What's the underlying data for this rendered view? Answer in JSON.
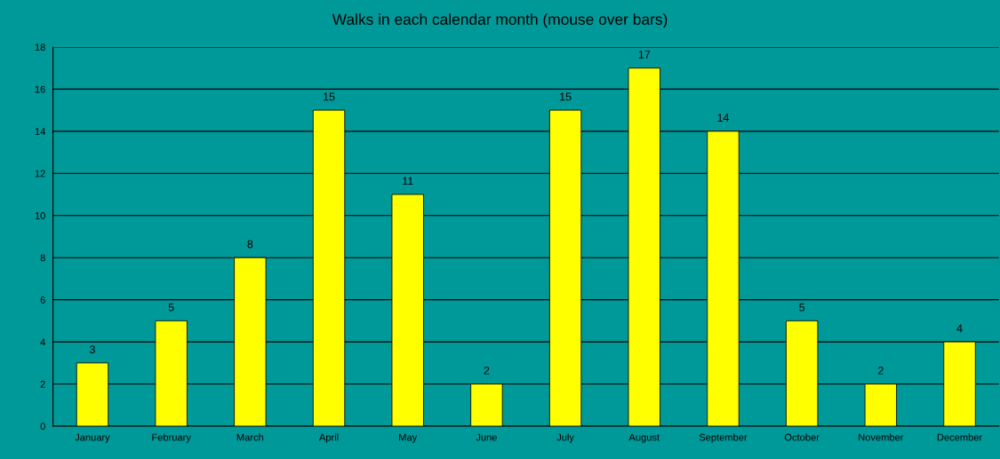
{
  "chart_data": {
    "type": "bar",
    "title": "Walks in each calendar month (mouse over bars)",
    "categories": [
      "January",
      "February",
      "March",
      "April",
      "May",
      "June",
      "July",
      "August",
      "September",
      "October",
      "November",
      "December"
    ],
    "values": [
      3,
      5,
      8,
      15,
      11,
      2,
      15,
      17,
      14,
      5,
      2,
      4
    ],
    "color": "#ffff00",
    "ylim": [
      0,
      18
    ],
    "yticks": [
      0,
      2,
      4,
      6,
      8,
      10,
      12,
      14,
      16,
      18
    ],
    "grid": "y",
    "data_labels": true,
    "legend": false
  }
}
